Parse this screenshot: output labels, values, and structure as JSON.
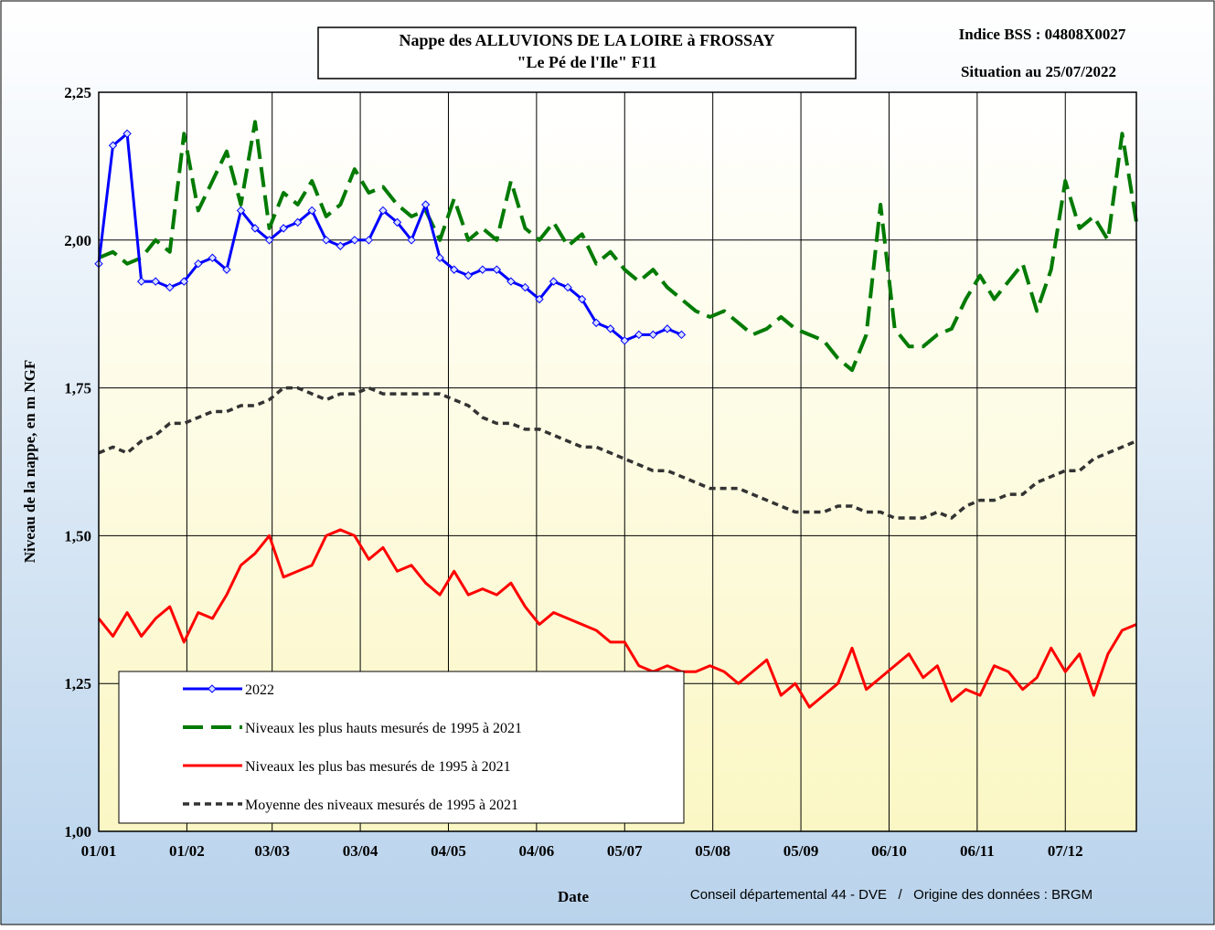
{
  "chart_data": {
    "type": "line",
    "title": [
      "Nappe des ALLUVIONS DE LA LOIRE à FROSSAY",
      "\"Le Pé de l'Ile\" F11"
    ],
    "annotations": [
      "Indice BSS : 04808X0027",
      "Situation au 25/07/2022",
      "Conseil départemental 44 - DVE   /   Origine des données : BRGM"
    ],
    "y_label": "Niveau de la nappe, en m NGF",
    "x_label": "Date",
    "x": [
      0,
      5,
      10,
      15,
      20,
      25,
      30,
      35,
      40,
      45,
      50,
      55,
      60,
      65,
      70,
      75,
      80,
      85,
      90,
      95,
      100,
      105,
      110,
      115,
      120,
      125,
      130,
      135,
      140,
      145,
      150,
      155,
      160,
      165,
      170,
      175,
      180,
      185,
      190,
      195,
      200,
      205,
      210,
      215,
      220,
      225,
      230,
      235,
      240,
      245,
      250,
      255,
      260,
      265,
      270,
      275,
      280,
      285,
      290,
      295,
      300,
      305,
      310,
      315,
      320,
      325,
      330,
      335,
      340,
      345,
      350,
      355,
      360,
      365
    ],
    "xlim": [
      0,
      365
    ],
    "xticks": [
      {
        "value": 0,
        "label": "01/01"
      },
      {
        "value": 31,
        "label": "01/02"
      },
      {
        "value": 61,
        "label": "03/03"
      },
      {
        "value": 92,
        "label": "03/04"
      },
      {
        "value": 123,
        "label": "04/05"
      },
      {
        "value": 154,
        "label": "04/06"
      },
      {
        "value": 185,
        "label": "05/07"
      },
      {
        "value": 216,
        "label": "05/08"
      },
      {
        "value": 247,
        "label": "05/09"
      },
      {
        "value": 278,
        "label": "06/10"
      },
      {
        "value": 309,
        "label": "06/11"
      },
      {
        "value": 340,
        "label": "07/12"
      }
    ],
    "ylim": [
      1,
      2.25
    ],
    "yticks": [
      {
        "value": 1,
        "label": "1,00"
      },
      {
        "value": 1.25,
        "label": "1,25"
      },
      {
        "value": 1.5,
        "label": "1,50"
      },
      {
        "value": 1.75,
        "label": "1,75"
      },
      {
        "value": 2,
        "label": "2,00"
      },
      {
        "value": 2.25,
        "label": "2,25"
      }
    ],
    "grid": true,
    "series": [
      {
        "name": "2022",
        "color": "#0000ff",
        "style": "solid",
        "marker": "diamond",
        "values": [
          1.96,
          2.16,
          2.18,
          1.93,
          1.93,
          1.92,
          1.93,
          1.96,
          1.97,
          1.95,
          2.05,
          2.02,
          2.0,
          2.02,
          2.03,
          2.05,
          2.0,
          1.99,
          2.0,
          2.0,
          2.05,
          2.03,
          2.0,
          2.06,
          1.97,
          1.95,
          1.94,
          1.95,
          1.95,
          1.93,
          1.92,
          1.9,
          1.93,
          1.92,
          1.9,
          1.86,
          1.85,
          1.83,
          1.84,
          1.84,
          1.85,
          1.84,
          null,
          null,
          null,
          null,
          null,
          null,
          null,
          null,
          null,
          null,
          null,
          null,
          null,
          null,
          null,
          null,
          null,
          null,
          null,
          null,
          null,
          null,
          null,
          null,
          null,
          null,
          null,
          null,
          null,
          null,
          null,
          null
        ]
      },
      {
        "name": "Niveaux les plus hauts mesurés de 1995 à 2021",
        "color": "#007a00",
        "style": "dashed",
        "values": [
          1.97,
          1.98,
          1.96,
          1.97,
          2.0,
          1.98,
          2.18,
          2.05,
          2.1,
          2.15,
          2.06,
          2.2,
          2.02,
          2.08,
          2.06,
          2.1,
          2.04,
          2.06,
          2.12,
          2.08,
          2.09,
          2.06,
          2.04,
          2.05,
          2.0,
          2.07,
          2.0,
          2.02,
          2.0,
          2.1,
          2.02,
          2.0,
          2.03,
          1.99,
          2.01,
          1.96,
          1.98,
          1.95,
          1.93,
          1.95,
          1.92,
          1.9,
          1.88,
          1.87,
          1.88,
          1.86,
          1.84,
          1.85,
          1.87,
          1.85,
          1.84,
          1.83,
          1.8,
          1.78,
          1.84,
          2.06,
          1.85,
          1.82,
          1.82,
          1.84,
          1.85,
          1.9,
          1.94,
          1.9,
          1.93,
          1.96,
          1.88,
          1.95,
          2.1,
          2.02,
          2.04,
          2.0,
          2.18,
          2.03
        ]
      },
      {
        "name": "Niveaux les plus bas mesurés de 1995 à 2021",
        "color": "#ff0000",
        "style": "solid",
        "values": [
          1.36,
          1.33,
          1.37,
          1.33,
          1.36,
          1.38,
          1.32,
          1.37,
          1.36,
          1.4,
          1.45,
          1.47,
          1.5,
          1.43,
          1.44,
          1.45,
          1.5,
          1.51,
          1.5,
          1.46,
          1.48,
          1.44,
          1.45,
          1.42,
          1.4,
          1.44,
          1.4,
          1.41,
          1.4,
          1.42,
          1.38,
          1.35,
          1.37,
          1.36,
          1.35,
          1.34,
          1.32,
          1.32,
          1.28,
          1.27,
          1.28,
          1.27,
          1.27,
          1.28,
          1.27,
          1.25,
          1.27,
          1.29,
          1.23,
          1.25,
          1.21,
          1.23,
          1.25,
          1.31,
          1.24,
          1.26,
          1.28,
          1.3,
          1.26,
          1.28,
          1.22,
          1.24,
          1.23,
          1.28,
          1.27,
          1.24,
          1.26,
          1.31,
          1.27,
          1.3,
          1.23,
          1.3,
          1.34,
          1.35
        ]
      },
      {
        "name": "Moyenne des niveaux mesurés de 1995 à 2021",
        "color": "#333333",
        "style": "dotted",
        "values": [
          1.64,
          1.65,
          1.64,
          1.66,
          1.67,
          1.69,
          1.69,
          1.7,
          1.71,
          1.71,
          1.72,
          1.72,
          1.73,
          1.75,
          1.75,
          1.74,
          1.73,
          1.74,
          1.74,
          1.75,
          1.74,
          1.74,
          1.74,
          1.74,
          1.74,
          1.73,
          1.72,
          1.7,
          1.69,
          1.69,
          1.68,
          1.68,
          1.67,
          1.66,
          1.65,
          1.65,
          1.64,
          1.63,
          1.62,
          1.61,
          1.61,
          1.6,
          1.59,
          1.58,
          1.58,
          1.58,
          1.57,
          1.56,
          1.55,
          1.54,
          1.54,
          1.54,
          1.55,
          1.55,
          1.54,
          1.54,
          1.53,
          1.53,
          1.53,
          1.54,
          1.53,
          1.55,
          1.56,
          1.56,
          1.57,
          1.57,
          1.59,
          1.6,
          1.61,
          1.61,
          1.63,
          1.64,
          1.65,
          1.66
        ]
      }
    ]
  }
}
